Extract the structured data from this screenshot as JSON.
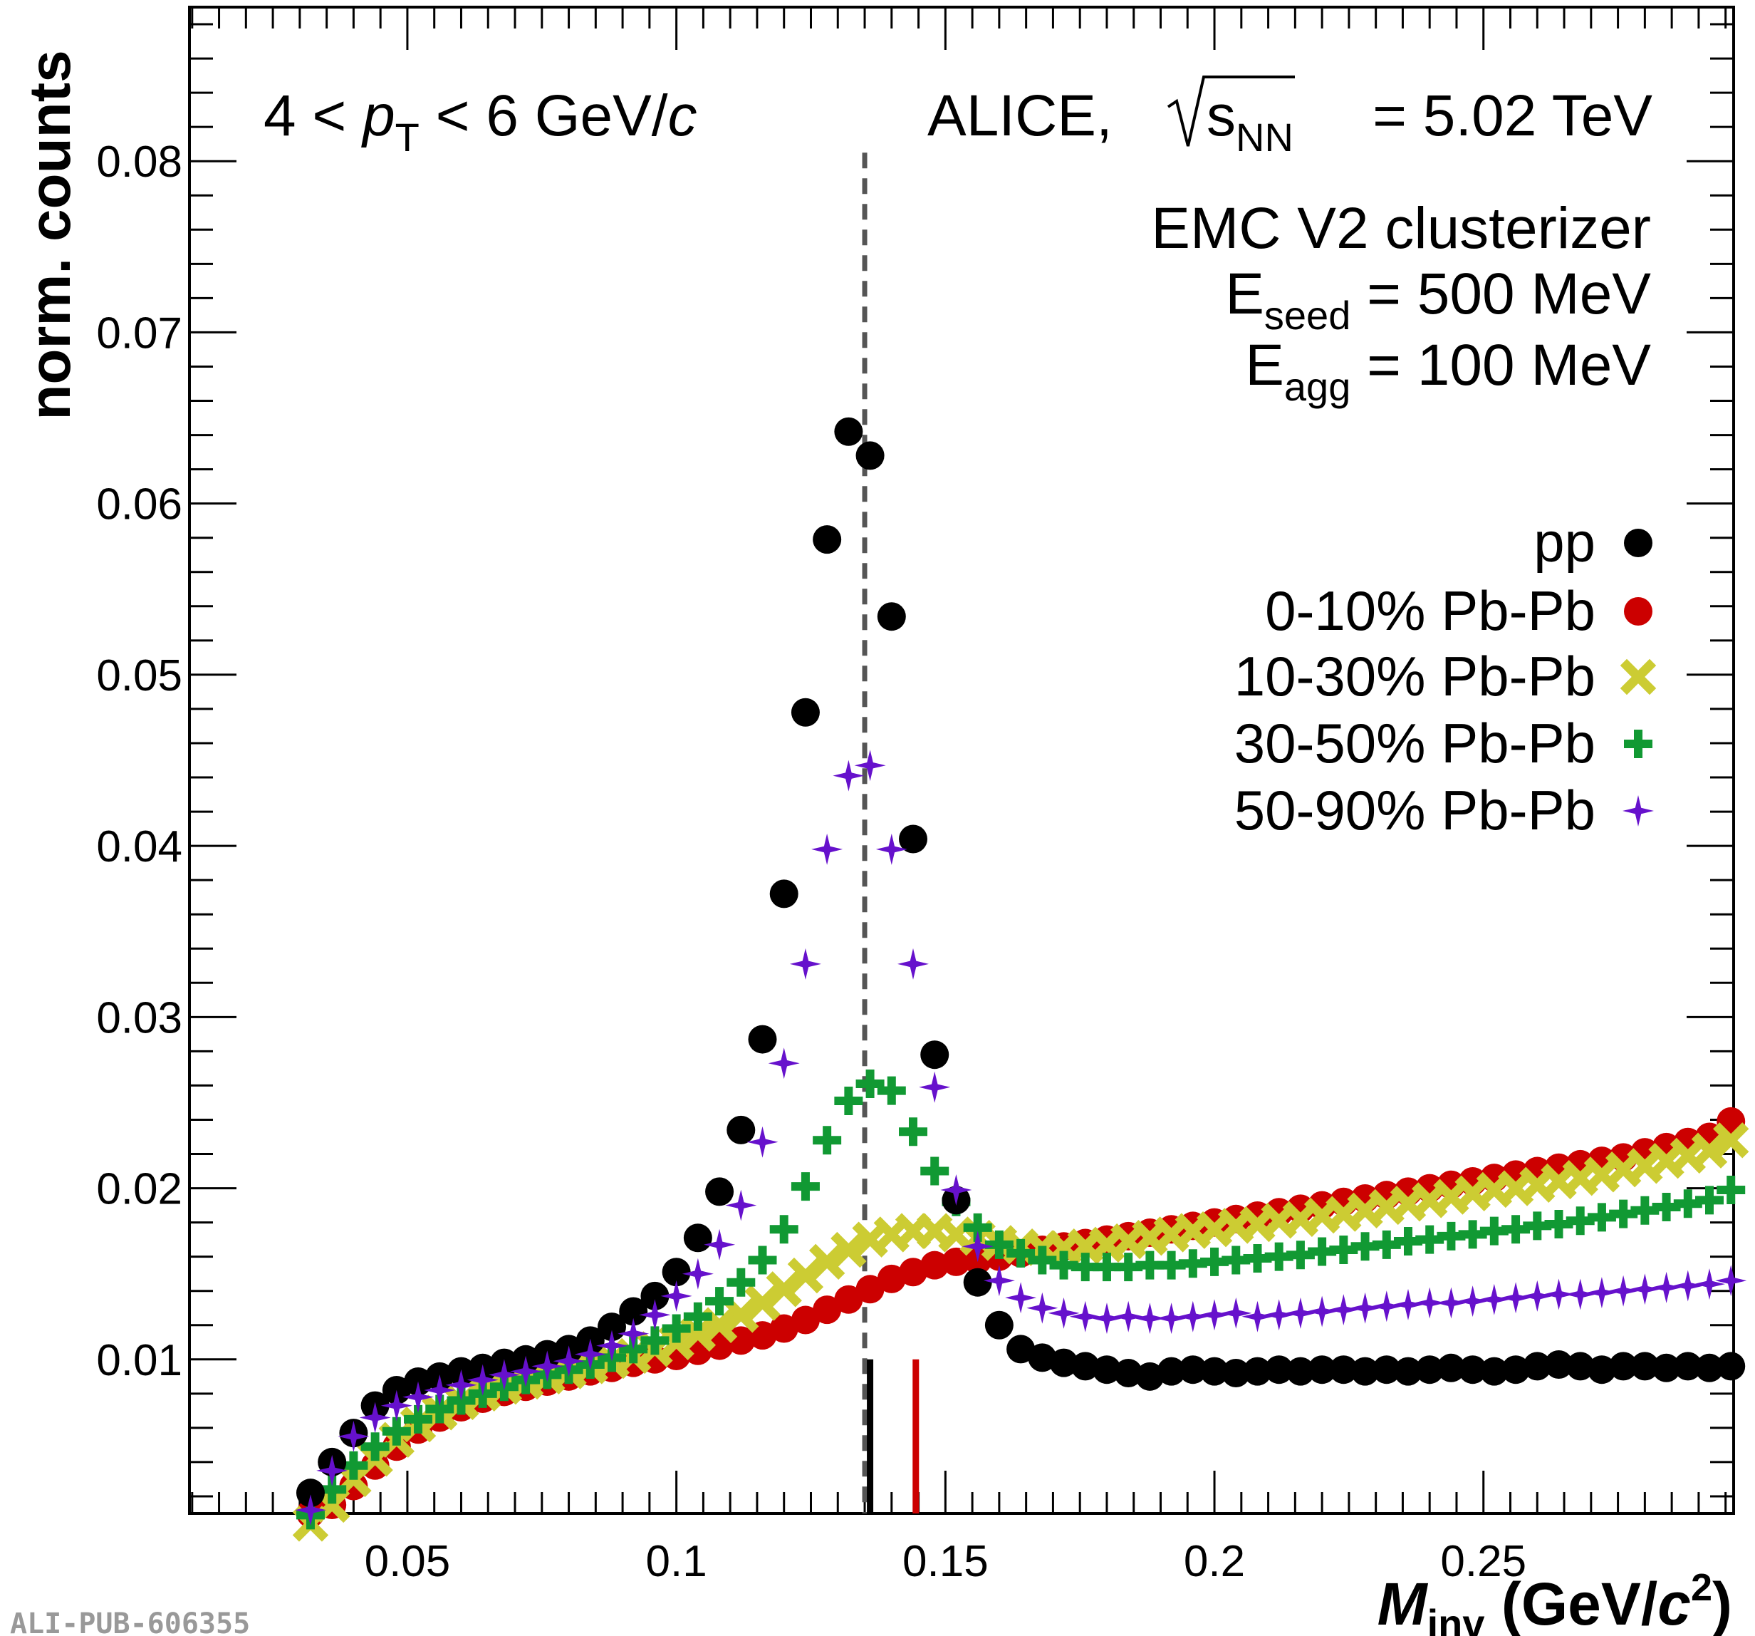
{
  "chart_data": {
    "type": "scatter",
    "xlabel": {
      "main": "M",
      "sub": "inv",
      "unit_pre": " (GeV/",
      "unit_it": "c",
      "unit_sup": "2",
      "unit_post": ")"
    },
    "ylabel": "norm. counts",
    "xlim": [
      0.0095,
      0.2965
    ],
    "ylim": [
      0.001,
      0.089
    ],
    "x_ticks": [
      0.05,
      0.1,
      0.15,
      0.2,
      0.25
    ],
    "x_tick_labels": [
      "0.05",
      "0.1",
      "0.15",
      "0.2",
      "0.25"
    ],
    "y_ticks": [
      0.01,
      0.02,
      0.03,
      0.04,
      0.05,
      0.06,
      0.07,
      0.08
    ],
    "y_tick_labels": [
      "0.01",
      "0.02",
      "0.03",
      "0.04",
      "0.05",
      "0.06",
      "0.07",
      "0.08"
    ],
    "annotations": {
      "pt_range": {
        "pre": "4 < ",
        "p": "p",
        "p_sub": "T",
        "post": " < 6 GeV/",
        "c": "c"
      },
      "experiment": {
        "pre": "ALICE, ",
        "s": "s",
        "s_sub": "NN",
        "post": " = 5.02 TeV"
      },
      "clusterizer": "EMC V2 clusterizer",
      "eseed": {
        "E": "E",
        "sub": "seed",
        "rest": " = 500 MeV"
      },
      "eagg": {
        "E": "E",
        "sub": "agg",
        "rest": " = 100 MeV"
      }
    },
    "reference_line_x": 0.135,
    "peak_markers": [
      {
        "x": 0.136,
        "color": "#000000"
      },
      {
        "x": 0.1445,
        "color": "#cc0000"
      }
    ],
    "legend_position": "right",
    "series": [
      {
        "name": "pp",
        "marker": "circle",
        "color": "#000000",
        "x": [
          0.032,
          0.036,
          0.04,
          0.044,
          0.048,
          0.052,
          0.056,
          0.06,
          0.064,
          0.068,
          0.072,
          0.076,
          0.08,
          0.084,
          0.088,
          0.092,
          0.096,
          0.1,
          0.104,
          0.108,
          0.112,
          0.116,
          0.12,
          0.124,
          0.128,
          0.132,
          0.136,
          0.14,
          0.144,
          0.148,
          0.152,
          0.156,
          0.16,
          0.164,
          0.168,
          0.172,
          0.176,
          0.18,
          0.184,
          0.188,
          0.192,
          0.196,
          0.2,
          0.204,
          0.208,
          0.212,
          0.216,
          0.22,
          0.224,
          0.228,
          0.232,
          0.236,
          0.24,
          0.244,
          0.248,
          0.252,
          0.256,
          0.26,
          0.264,
          0.268,
          0.272,
          0.276,
          0.28,
          0.284,
          0.288,
          0.292,
          0.296
        ],
        "y": [
          0.0022,
          0.004,
          0.0057,
          0.0073,
          0.0082,
          0.0087,
          0.009,
          0.0093,
          0.0095,
          0.0098,
          0.01,
          0.0103,
          0.0106,
          0.0111,
          0.0119,
          0.0128,
          0.0137,
          0.0151,
          0.0171,
          0.0198,
          0.0234,
          0.0287,
          0.0372,
          0.0478,
          0.0579,
          0.0642,
          0.0628,
          0.0534,
          0.0404,
          0.0278,
          0.0193,
          0.0145,
          0.012,
          0.0106,
          0.0101,
          0.0098,
          0.0096,
          0.0094,
          0.0092,
          0.009,
          0.0093,
          0.0094,
          0.0093,
          0.0092,
          0.0093,
          0.0094,
          0.0093,
          0.0094,
          0.0094,
          0.0093,
          0.0094,
          0.0093,
          0.0094,
          0.0095,
          0.0094,
          0.0093,
          0.0094,
          0.0096,
          0.0097,
          0.0096,
          0.0094,
          0.0096,
          0.0096,
          0.0095,
          0.0096,
          0.0095,
          0.0096
        ]
      },
      {
        "name": "0-10% Pb-Pb",
        "marker": "circle",
        "color": "#cc0000",
        "x": [
          0.032,
          0.036,
          0.04,
          0.044,
          0.048,
          0.052,
          0.056,
          0.06,
          0.064,
          0.068,
          0.072,
          0.076,
          0.08,
          0.084,
          0.088,
          0.092,
          0.096,
          0.1,
          0.104,
          0.108,
          0.112,
          0.116,
          0.12,
          0.124,
          0.128,
          0.132,
          0.136,
          0.14,
          0.144,
          0.148,
          0.152,
          0.156,
          0.16,
          0.164,
          0.168,
          0.172,
          0.176,
          0.18,
          0.184,
          0.188,
          0.192,
          0.196,
          0.2,
          0.204,
          0.208,
          0.212,
          0.216,
          0.22,
          0.224,
          0.228,
          0.232,
          0.236,
          0.24,
          0.244,
          0.248,
          0.252,
          0.256,
          0.26,
          0.264,
          0.268,
          0.272,
          0.276,
          0.28,
          0.284,
          0.288,
          0.292,
          0.296
        ],
        "y": [
          0.001,
          0.0015,
          0.0026,
          0.0038,
          0.0049,
          0.0059,
          0.0066,
          0.0072,
          0.0077,
          0.0081,
          0.0084,
          0.0087,
          0.009,
          0.0093,
          0.0095,
          0.0098,
          0.01,
          0.0102,
          0.0105,
          0.0108,
          0.0111,
          0.0114,
          0.0118,
          0.0123,
          0.0129,
          0.0135,
          0.0141,
          0.0147,
          0.0151,
          0.0155,
          0.0157,
          0.0158,
          0.016,
          0.0162,
          0.0164,
          0.0166,
          0.0168,
          0.017,
          0.0172,
          0.0174,
          0.0176,
          0.0178,
          0.018,
          0.0182,
          0.0184,
          0.0186,
          0.0188,
          0.019,
          0.0192,
          0.0194,
          0.0196,
          0.0198,
          0.02,
          0.0202,
          0.0204,
          0.0206,
          0.0208,
          0.021,
          0.0212,
          0.0214,
          0.0216,
          0.0218,
          0.0221,
          0.0224,
          0.0227,
          0.023,
          0.0239
        ]
      },
      {
        "name": "10-30% Pb-Pb",
        "marker": "x",
        "color": "#cccc33",
        "x": [
          0.032,
          0.036,
          0.04,
          0.044,
          0.048,
          0.052,
          0.056,
          0.06,
          0.064,
          0.068,
          0.072,
          0.076,
          0.08,
          0.084,
          0.088,
          0.092,
          0.096,
          0.1,
          0.104,
          0.108,
          0.112,
          0.116,
          0.12,
          0.124,
          0.128,
          0.132,
          0.136,
          0.14,
          0.144,
          0.148,
          0.152,
          0.156,
          0.16,
          0.164,
          0.168,
          0.172,
          0.176,
          0.18,
          0.184,
          0.188,
          0.192,
          0.196,
          0.2,
          0.204,
          0.208,
          0.212,
          0.216,
          0.22,
          0.224,
          0.228,
          0.232,
          0.236,
          0.24,
          0.244,
          0.248,
          0.252,
          0.256,
          0.26,
          0.264,
          0.268,
          0.272,
          0.276,
          0.28,
          0.284,
          0.288,
          0.292,
          0.296
        ],
        "y": [
          0.0004,
          0.0015,
          0.003,
          0.0042,
          0.0053,
          0.0062,
          0.0069,
          0.0075,
          0.008,
          0.0084,
          0.0087,
          0.009,
          0.0093,
          0.0096,
          0.0099,
          0.0102,
          0.0106,
          0.011,
          0.0115,
          0.012,
          0.0126,
          0.0133,
          0.0141,
          0.0149,
          0.0157,
          0.0164,
          0.017,
          0.0173,
          0.0175,
          0.0175,
          0.0173,
          0.0171,
          0.0168,
          0.0166,
          0.0165,
          0.0165,
          0.0166,
          0.0167,
          0.0169,
          0.0171,
          0.0173,
          0.0175,
          0.0176,
          0.0178,
          0.0179,
          0.0181,
          0.0182,
          0.0184,
          0.0185,
          0.0187,
          0.0189,
          0.0191,
          0.0193,
          0.0195,
          0.0197,
          0.0199,
          0.02,
          0.0202,
          0.0204,
          0.0206,
          0.0208,
          0.0211,
          0.0213,
          0.0216,
          0.0219,
          0.0222,
          0.0228
        ]
      },
      {
        "name": "30-50% Pb-Pb",
        "marker": "plus",
        "color": "#119933",
        "x": [
          0.032,
          0.036,
          0.04,
          0.044,
          0.048,
          0.052,
          0.056,
          0.06,
          0.064,
          0.068,
          0.072,
          0.076,
          0.08,
          0.084,
          0.088,
          0.092,
          0.096,
          0.1,
          0.104,
          0.108,
          0.112,
          0.116,
          0.12,
          0.124,
          0.128,
          0.132,
          0.136,
          0.14,
          0.144,
          0.148,
          0.152,
          0.156,
          0.16,
          0.164,
          0.168,
          0.172,
          0.176,
          0.18,
          0.184,
          0.188,
          0.192,
          0.196,
          0.2,
          0.204,
          0.208,
          0.212,
          0.216,
          0.22,
          0.224,
          0.228,
          0.232,
          0.236,
          0.24,
          0.244,
          0.248,
          0.252,
          0.256,
          0.26,
          0.264,
          0.268,
          0.272,
          0.276,
          0.28,
          0.284,
          0.288,
          0.292,
          0.296
        ],
        "y": [
          0.0009,
          0.0024,
          0.0038,
          0.0049,
          0.0058,
          0.0065,
          0.0071,
          0.0076,
          0.008,
          0.0084,
          0.0088,
          0.0091,
          0.0094,
          0.0097,
          0.0101,
          0.0106,
          0.0111,
          0.0118,
          0.0125,
          0.0134,
          0.0145,
          0.0158,
          0.0176,
          0.0201,
          0.0228,
          0.0251,
          0.0261,
          0.0257,
          0.0233,
          0.021,
          0.0192,
          0.0177,
          0.0167,
          0.0162,
          0.0158,
          0.0155,
          0.0154,
          0.0154,
          0.0154,
          0.0155,
          0.0155,
          0.0156,
          0.0157,
          0.0158,
          0.0159,
          0.016,
          0.0161,
          0.0163,
          0.0164,
          0.0166,
          0.0167,
          0.0169,
          0.017,
          0.0172,
          0.0173,
          0.0175,
          0.0176,
          0.0178,
          0.0179,
          0.0181,
          0.0183,
          0.0185,
          0.0187,
          0.0189,
          0.0191,
          0.0193,
          0.0199
        ]
      },
      {
        "name": "50-90% Pb-Pb",
        "marker": "star",
        "color": "#6611cc",
        "x": [
          0.032,
          0.036,
          0.04,
          0.044,
          0.048,
          0.052,
          0.056,
          0.06,
          0.064,
          0.068,
          0.072,
          0.076,
          0.08,
          0.084,
          0.088,
          0.092,
          0.096,
          0.1,
          0.104,
          0.108,
          0.112,
          0.116,
          0.12,
          0.124,
          0.128,
          0.132,
          0.136,
          0.14,
          0.144,
          0.148,
          0.152,
          0.156,
          0.16,
          0.164,
          0.168,
          0.172,
          0.176,
          0.18,
          0.184,
          0.188,
          0.192,
          0.196,
          0.2,
          0.204,
          0.208,
          0.212,
          0.216,
          0.22,
          0.224,
          0.228,
          0.232,
          0.236,
          0.24,
          0.244,
          0.248,
          0.252,
          0.256,
          0.26,
          0.264,
          0.268,
          0.272,
          0.276,
          0.28,
          0.284,
          0.288,
          0.292,
          0.296
        ],
        "y": [
          0.0012,
          0.0035,
          0.0055,
          0.0066,
          0.0073,
          0.0078,
          0.0082,
          0.0085,
          0.0088,
          0.0091,
          0.0093,
          0.0096,
          0.0099,
          0.0103,
          0.0108,
          0.0115,
          0.0126,
          0.0137,
          0.015,
          0.0167,
          0.019,
          0.0227,
          0.0273,
          0.0331,
          0.0398,
          0.0441,
          0.0447,
          0.0398,
          0.0331,
          0.0259,
          0.0199,
          0.0166,
          0.0146,
          0.0136,
          0.013,
          0.0127,
          0.0125,
          0.0124,
          0.0125,
          0.0124,
          0.0124,
          0.0125,
          0.0126,
          0.0127,
          0.0125,
          0.0126,
          0.0127,
          0.0128,
          0.0129,
          0.013,
          0.0131,
          0.0132,
          0.0133,
          0.0133,
          0.0134,
          0.0135,
          0.0136,
          0.0137,
          0.0138,
          0.0138,
          0.0139,
          0.014,
          0.0141,
          0.0142,
          0.0143,
          0.0144,
          0.0146
        ]
      }
    ]
  },
  "watermark": "ALI-PUB-606355"
}
